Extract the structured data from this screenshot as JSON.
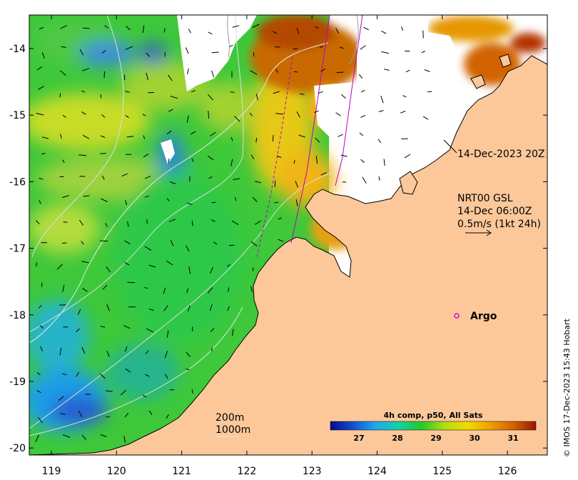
{
  "map": {
    "x_ticks": [
      "119",
      "120",
      "121",
      "122",
      "123",
      "124",
      "125",
      "126"
    ],
    "y_ticks": [
      "-14",
      "-15",
      "-16",
      "-17",
      "-18",
      "-19",
      "-20"
    ],
    "colors": {
      "land": "#fcc89a",
      "no_data": "#ffffff",
      "isobath": "#d8d8d8",
      "argo": "#e000e0",
      "track": "#c000c0"
    }
  },
  "annotations": {
    "satellite_time": "14-Dec-2023 20Z",
    "current_model": "NRT00 GSL",
    "current_time": "14-Dec 06:00Z",
    "current_scale": "0.5m/s (1kt 24h)",
    "argo_label": "Argo",
    "isobath_200": "200m",
    "isobath_1000": "1000m",
    "credit": "© IMOS 17-Dec-2023 15:43 Hobart"
  },
  "colorbar": {
    "title": "4h comp, p50, All Sats",
    "ticks": [
      "27",
      "28",
      "29",
      "30",
      "31"
    ],
    "colors": [
      "#0a0a8c",
      "#1450d2",
      "#1eaaf0",
      "#14d2a0",
      "#28c828",
      "#b4dc14",
      "#f0dc00",
      "#f0a000",
      "#d26400",
      "#a01400"
    ]
  }
}
